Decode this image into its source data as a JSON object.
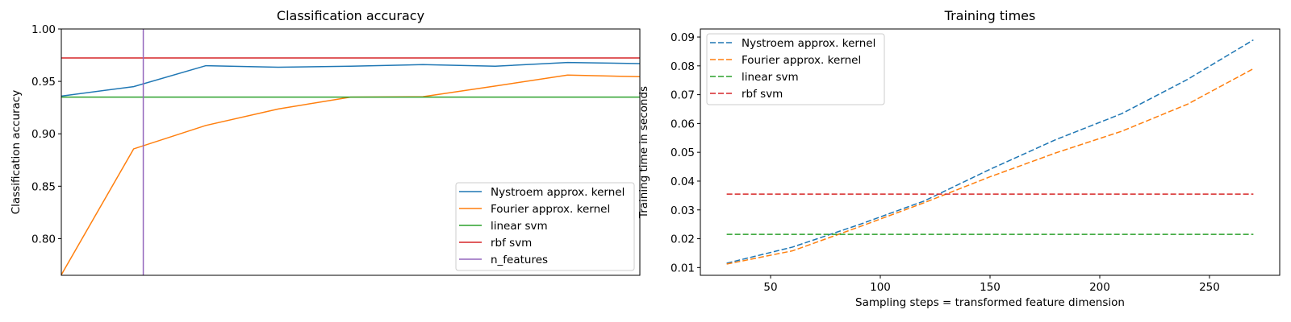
{
  "chart_data": [
    {
      "type": "line",
      "title": "Classification accuracy",
      "xlabel": "",
      "ylabel": "Classification accuracy",
      "xlim": [
        30,
        270
      ],
      "ylim": [
        0.765,
        1.0
      ],
      "yticks": [
        0.8,
        0.85,
        0.9,
        0.95,
        1.0
      ],
      "ytick_labels": [
        "0.80",
        "0.85",
        "0.90",
        "0.95",
        "1.00"
      ],
      "xticks_visible": false,
      "grid": false,
      "legend_placement": "lower-right",
      "x": [
        30,
        60,
        90,
        120,
        150,
        180,
        210,
        240,
        270
      ],
      "series": [
        {
          "name": "Nystroem approx. kernel",
          "style": "solid",
          "color": "#1f77b4",
          "values": [
            0.936,
            0.945,
            0.965,
            0.9635,
            0.9645,
            0.966,
            0.9645,
            0.968,
            0.967
          ]
        },
        {
          "name": "Fourier approx. kernel",
          "style": "solid",
          "color": "#ff7f0e",
          "values": [
            0.7655,
            0.8856,
            0.908,
            0.9237,
            0.935,
            0.9354,
            0.9456,
            0.956,
            0.9545
          ]
        },
        {
          "name": "linear svm",
          "style": "solid",
          "color": "#2ca02c",
          "hline": 0.935
        },
        {
          "name": "rbf svm",
          "style": "solid",
          "color": "#d62728",
          "hline": 0.9724
        },
        {
          "name": "n_features",
          "style": "solid",
          "color": "#9467bd",
          "vline": 64
        }
      ]
    },
    {
      "type": "line",
      "title": "Training times",
      "xlabel": "Sampling steps = transformed feature dimension",
      "ylabel": "Training time in seconds",
      "xlim": [
        18,
        282
      ],
      "ylim": [
        0.0073,
        0.0928
      ],
      "xticks": [
        50,
        100,
        150,
        200,
        250
      ],
      "xtick_labels": [
        "50",
        "100",
        "150",
        "200",
        "250"
      ],
      "yticks": [
        0.01,
        0.02,
        0.03,
        0.04,
        0.05,
        0.06,
        0.07,
        0.08,
        0.09
      ],
      "ytick_labels": [
        "0.01",
        "0.02",
        "0.03",
        "0.04",
        "0.05",
        "0.06",
        "0.07",
        "0.08",
        "0.09"
      ],
      "grid": false,
      "legend_placement": "upper-left",
      "x": [
        30,
        60,
        90,
        120,
        150,
        180,
        210,
        240,
        270
      ],
      "series": [
        {
          "name": "Nystroem approx. kernel",
          "style": "dashed",
          "color": "#1f77b4",
          "values": [
            0.0115,
            0.0171,
            0.0248,
            0.0331,
            0.0441,
            0.0544,
            0.0634,
            0.0753,
            0.089
          ]
        },
        {
          "name": "Fourier approx. kernel",
          "style": "dashed",
          "color": "#ff7f0e",
          "values": [
            0.0112,
            0.0158,
            0.024,
            0.0325,
            0.0415,
            0.0498,
            0.0573,
            0.0667,
            0.079
          ]
        },
        {
          "name": "linear svm",
          "style": "dashed",
          "color": "#2ca02c",
          "hline": 0.0215,
          "span": [
            30,
            270
          ]
        },
        {
          "name": "rbf svm",
          "style": "dashed",
          "color": "#d62728",
          "hline": 0.0355,
          "span": [
            30,
            270
          ]
        }
      ]
    }
  ]
}
